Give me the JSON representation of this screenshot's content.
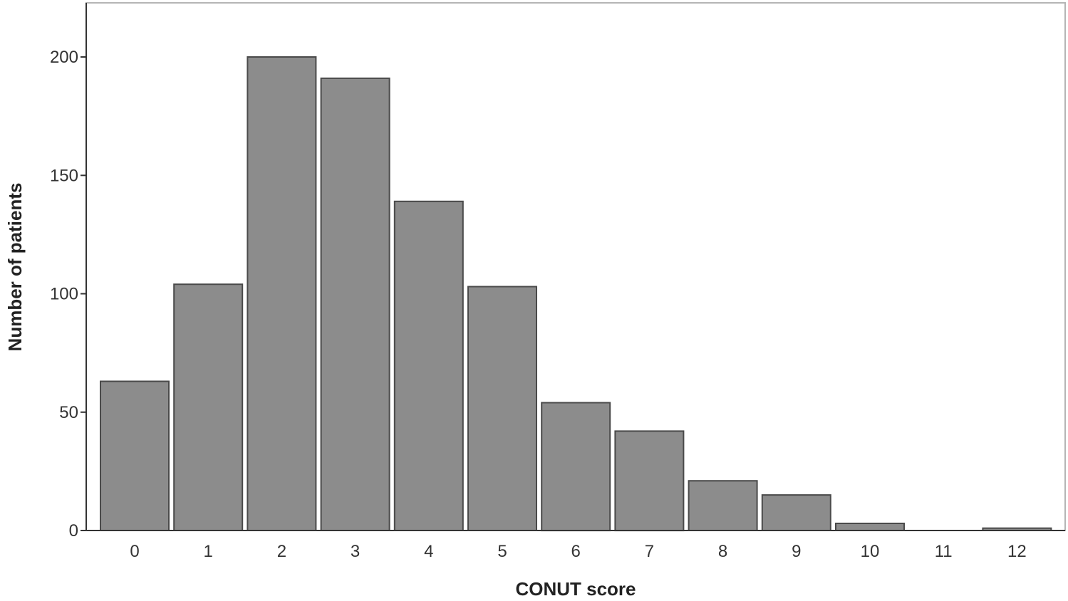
{
  "chart_data": {
    "type": "bar",
    "title": "",
    "xlabel": "CONUT score",
    "ylabel": "Number of patients",
    "categories": [
      "0",
      "1",
      "2",
      "3",
      "4",
      "5",
      "6",
      "7",
      "8",
      "9",
      "10",
      "11",
      "12"
    ],
    "values": [
      63,
      104,
      200,
      191,
      139,
      103,
      54,
      42,
      21,
      15,
      3,
      0,
      1
    ],
    "ylim": [
      0,
      220
    ],
    "yticks": [
      0,
      50,
      100,
      150,
      200
    ],
    "grid": false,
    "legend": "none",
    "colors": {
      "bar_fill": "#8c8c8c",
      "bar_stroke": "#4a4a4a",
      "axis": "#333333",
      "frame": "#b5b5b5"
    }
  }
}
